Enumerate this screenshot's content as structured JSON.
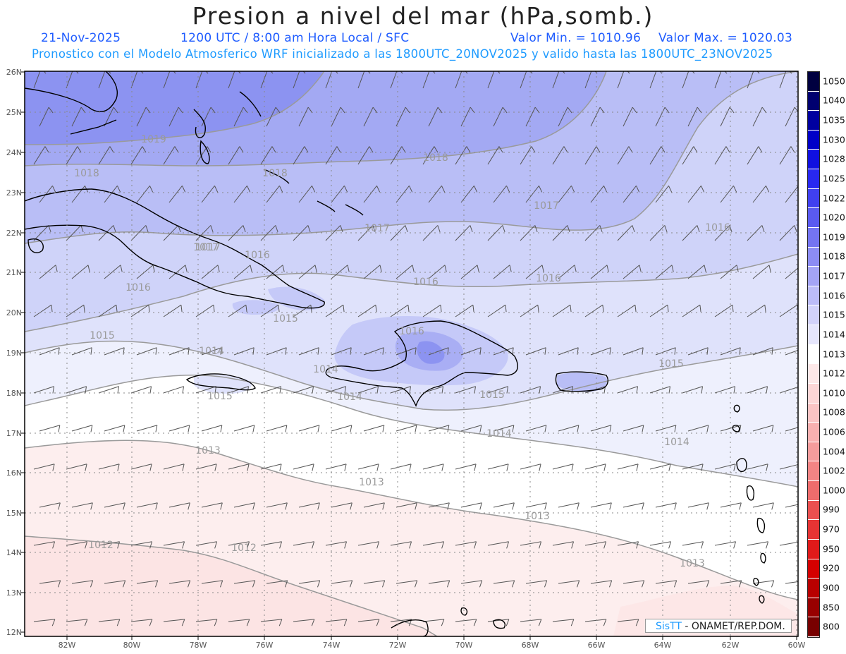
{
  "header": {
    "title": "Presion a nivel del mar (hPa,somb.)",
    "date": "21-Nov-2025",
    "time": "1200 UTC / 8:00 am Hora Local / SFC",
    "min": "Valor Min. = 1010.96",
    "max": "Valor Max. = 1020.03",
    "forecast": "Pronostico con el Modelo Atmosferico WRF inicializado a las 1800UTC_20NOV2025 y valido hasta las  1800UTC_23NOV2025"
  },
  "axes": {
    "lat_labels": [
      "26N",
      "25N",
      "24N",
      "23N",
      "22N",
      "21N",
      "20N",
      "19N",
      "18N",
      "17N",
      "16N",
      "15N",
      "14N",
      "13N",
      "12N"
    ],
    "lon_labels": [
      "82W",
      "80W",
      "78W",
      "76W",
      "74W",
      "72W",
      "70W",
      "68W",
      "66W",
      "64W",
      "62W",
      "60W"
    ]
  },
  "contour_labels": [
    "1019",
    "1018",
    "1018",
    "1018",
    "1017",
    "1017",
    "1017",
    "1016",
    "1017",
    "1016",
    "1016",
    "1016",
    "1016",
    "1015",
    "1015",
    "1016",
    "1014",
    "1015",
    "1014",
    "1015",
    "1014",
    "1014",
    "1015",
    "1013",
    "1013",
    "1013",
    "1014",
    "1012",
    "1012",
    "1013"
  ],
  "legend": {
    "labels": [
      "1050",
      "1040",
      "1035",
      "1030",
      "1028",
      "1025",
      "1022",
      "1020",
      "1019",
      "1018",
      "1017",
      "1016",
      "1015",
      "1014",
      "1013",
      "1012",
      "1010",
      "1008",
      "1006",
      "1004",
      "1002",
      "1000",
      "990",
      "970",
      "950",
      "920",
      "900",
      "850",
      "800"
    ],
    "colors": [
      "#000040",
      "#000070",
      "#0000a0",
      "#0000c8",
      "#1010e0",
      "#2828f0",
      "#4040f0",
      "#5a5af0",
      "#7474f2",
      "#8c8cf4",
      "#a4a4f6",
      "#bcbcf8",
      "#d2d2fa",
      "#e6e6fc",
      "#ffffff",
      "#fde8e8",
      "#fcd6d6",
      "#fac4c4",
      "#f8b0b0",
      "#f59c9c",
      "#f28484",
      "#ee6c6c",
      "#ea5050",
      "#e63434",
      "#e01a1a",
      "#d40000",
      "#b80000",
      "#980000",
      "#780000"
    ]
  },
  "credit": {
    "brand": "SisTT",
    "org": "- ONAMET/REP.DOM."
  }
}
